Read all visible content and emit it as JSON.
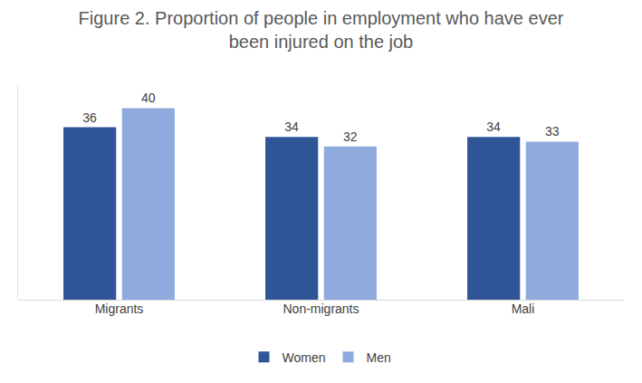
{
  "chart_data": {
    "type": "bar",
    "title": "Figure 2. Proportion of people in employment who have ever been injured on the job",
    "categories": [
      "Migrants",
      "Non-migrants",
      "Mali"
    ],
    "series": [
      {
        "name": "Women",
        "color": "#2f5597",
        "values": [
          36,
          34,
          34
        ]
      },
      {
        "name": "Men",
        "color": "#8faadc",
        "values": [
          40,
          32,
          33
        ]
      }
    ],
    "ylim": [
      0,
      45
    ],
    "yticks": [
      0
    ],
    "grid": false,
    "legend": "bottom",
    "data_labels": true,
    "tick_labels": "x"
  }
}
